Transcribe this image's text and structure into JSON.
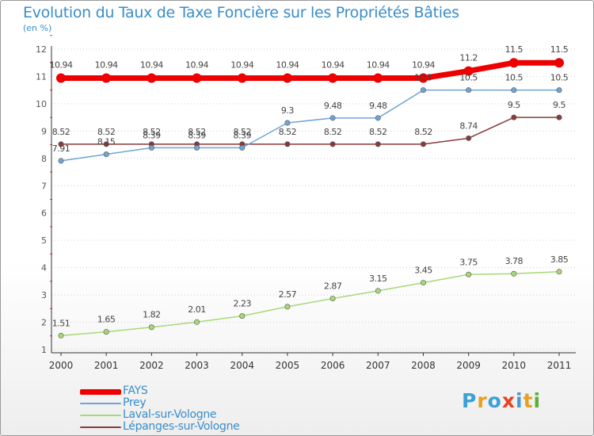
{
  "header": {
    "title": "Evolution du Taux de Taxe Foncière sur les Propriétés Bâties",
    "subtitle": "(en %)"
  },
  "logo": {
    "text": "Proxiti",
    "letters": [
      "P",
      "r",
      "o",
      "x",
      "i",
      "t",
      "i"
    ],
    "colors": [
      "#3aa0d8",
      "#e8a020",
      "#3aa0d8",
      "#e84020",
      "#4a9ad0",
      "#e8a020",
      "#5ab030"
    ]
  },
  "chart_data": {
    "type": "line",
    "title": "Evolution du Taux de Taxe Foncière sur les Propriétés Bâties",
    "ylabel": "(en %)",
    "xlabel": "",
    "x": [
      "2000",
      "2001",
      "2002",
      "2003",
      "2004",
      "2005",
      "2006",
      "2007",
      "2008",
      "2009",
      "2010",
      "2011"
    ],
    "ylim": [
      1,
      12
    ],
    "yticks": [
      "1",
      "2",
      "3",
      "4",
      "5",
      "6",
      "7",
      "8",
      "9",
      "10",
      "11",
      "12"
    ],
    "grid": "horizontal dotted",
    "legend_position": "bottom-left",
    "series": [
      {
        "name": "FAYS",
        "color": "#ee0000",
        "width": 7,
        "marker": 6,
        "values": [
          10.94,
          10.94,
          10.94,
          10.94,
          10.94,
          10.94,
          10.94,
          10.94,
          10.94,
          11.2,
          11.5,
          11.5
        ],
        "labels": [
          "10.94",
          "10.94",
          "10.94",
          "10.94",
          "10.94",
          "10.94",
          "10.94",
          "10.94",
          "10.94",
          "11.2",
          "11.5",
          "11.5"
        ]
      },
      {
        "name": "Prey",
        "color": "#6fa5d6",
        "width": 1.5,
        "marker": 3.2,
        "values": [
          7.91,
          8.15,
          8.39,
          8.39,
          8.39,
          9.3,
          9.48,
          9.48,
          10.5,
          10.5,
          10.5,
          10.5
        ],
        "labels": [
          "7.91",
          "8.15",
          "8.39",
          "8.39",
          "8.39",
          "9.3",
          "9.48",
          "9.48",
          "10.5",
          "10.5",
          "10.5",
          "10.5"
        ]
      },
      {
        "name": "Laval-sur-Vologne",
        "color": "#a8d878",
        "width": 1.5,
        "marker": 3.2,
        "values": [
          1.51,
          1.65,
          1.82,
          2.01,
          2.23,
          2.57,
          2.87,
          3.15,
          3.45,
          3.75,
          3.78,
          3.85
        ],
        "labels": [
          "1.51",
          "1.65",
          "1.82",
          "2.01",
          "2.23",
          "2.57",
          "2.87",
          "3.15",
          "3.45",
          "3.75",
          "3.78",
          "3.85"
        ]
      },
      {
        "name": "Lépanges-sur-Vologne",
        "color": "#8b3a3a",
        "width": 1.5,
        "marker": 3.2,
        "values": [
          8.52,
          8.52,
          8.52,
          8.52,
          8.52,
          8.52,
          8.52,
          8.52,
          8.52,
          8.74,
          9.5,
          9.5
        ],
        "labels": [
          "8.52",
          "8.52",
          "8.52",
          "8.52",
          "8.52",
          "8.52",
          "8.52",
          "8.52",
          "8.52",
          "8.74",
          "9.5",
          "9.5"
        ]
      }
    ]
  }
}
